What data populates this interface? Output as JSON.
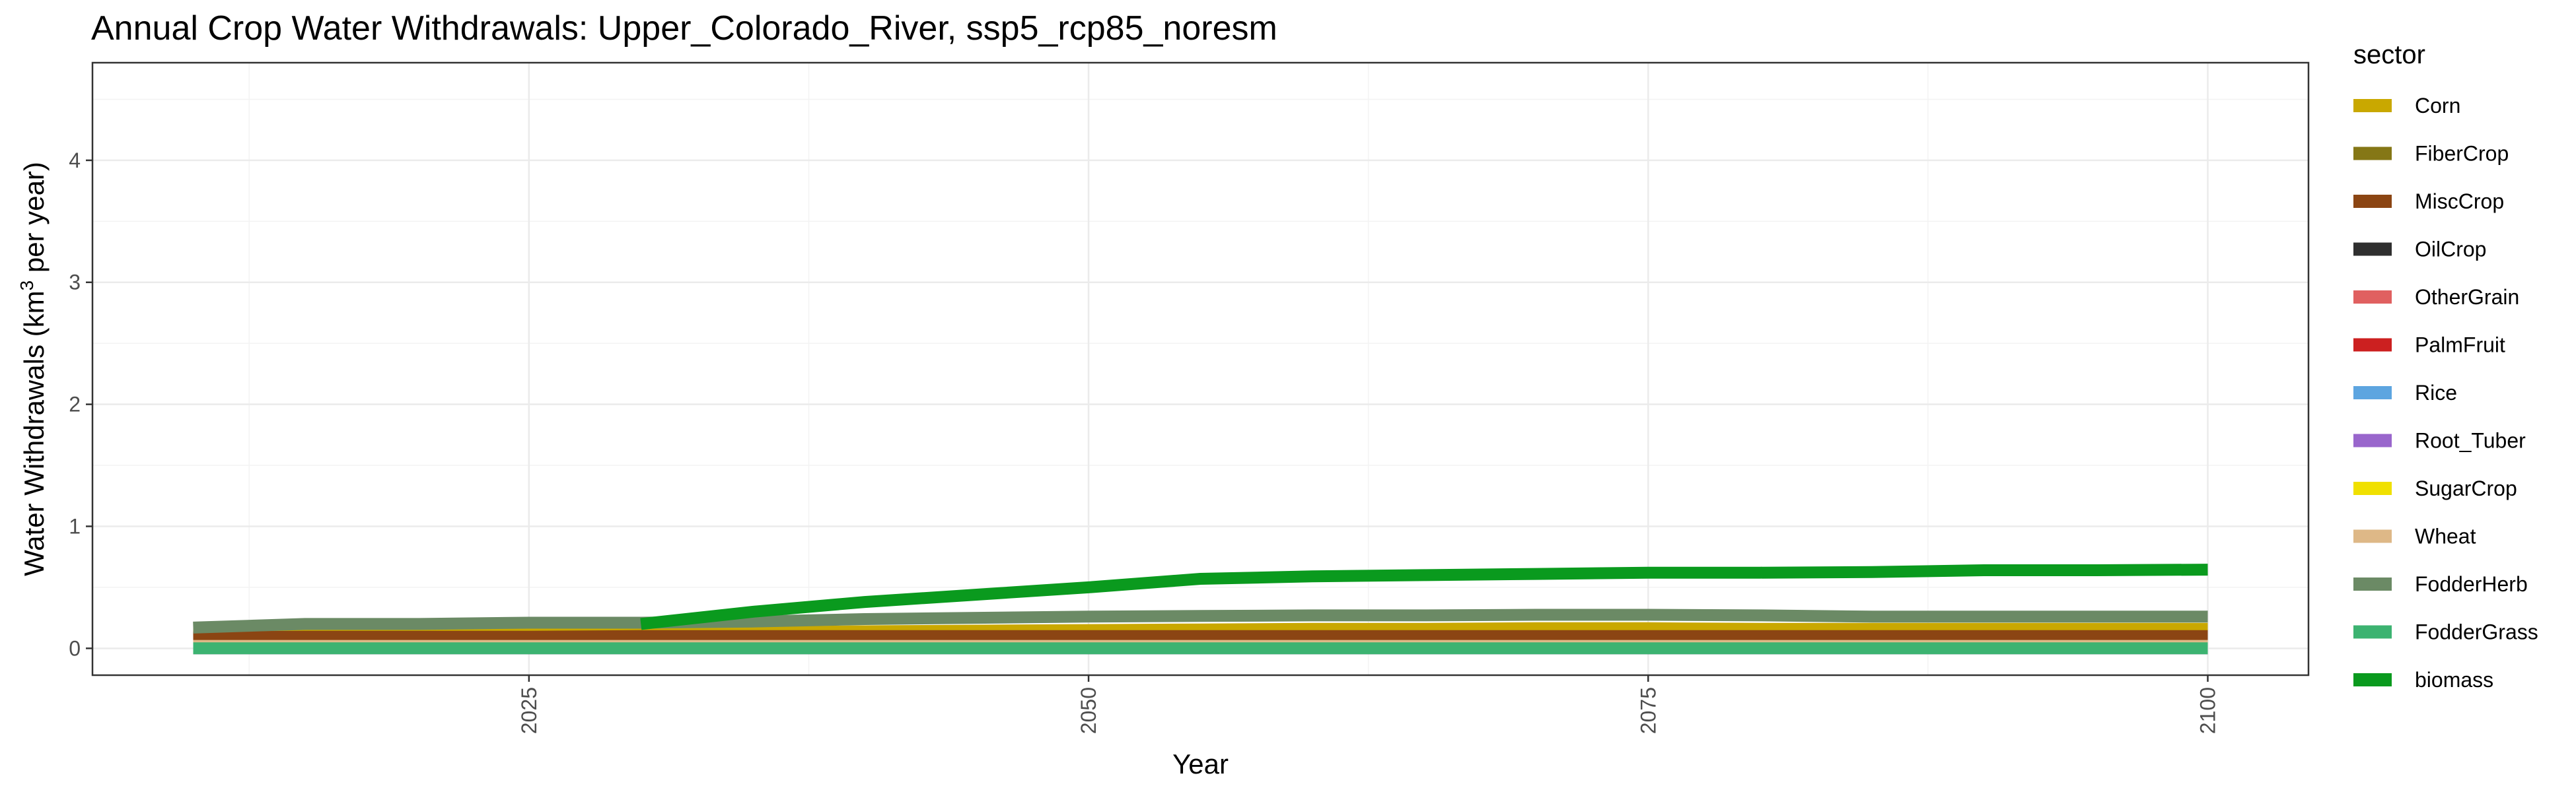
{
  "chart_data": {
    "type": "line",
    "title": "Annual Crop Water Withdrawals: Upper_Colorado_River, ssp5_rcp85_noresm",
    "xlabel": "Year",
    "ylabel_main": "Water Withdrawals (km",
    "ylabel_sup": "3",
    "ylabel_tail": " per year)",
    "xlim": [
      2005.5,
      2104.5
    ],
    "ylim": [
      -0.22,
      4.8
    ],
    "x_ticks": [
      2025,
      2050,
      2075,
      2100
    ],
    "y_ticks": [
      0,
      1,
      2,
      3,
      4
    ],
    "grid": true,
    "legend_title": "sector",
    "legend_position": "right",
    "x": [
      2010,
      2015,
      2020,
      2025,
      2030,
      2035,
      2040,
      2045,
      2050,
      2055,
      2060,
      2065,
      2070,
      2075,
      2080,
      2085,
      2090,
      2095,
      2100
    ],
    "series": [
      {
        "name": "Corn",
        "color": "#C9A800",
        "values": [
          0.12,
          0.12,
          0.12,
          0.12,
          0.12,
          0.13,
          0.14,
          0.145,
          0.15,
          0.155,
          0.16,
          0.16,
          0.165,
          0.165,
          0.16,
          0.16,
          0.16,
          0.16,
          0.16
        ]
      },
      {
        "name": "FiberCrop",
        "color": "#857716",
        "values": [
          0.005,
          0.005,
          0.005,
          0.005,
          0.005,
          0.005,
          0.005,
          0.005,
          0.005,
          0.005,
          0.005,
          0.005,
          0.005,
          0.005,
          0.005,
          0.005,
          0.005,
          0.005,
          0.005
        ]
      },
      {
        "name": "MiscCrop",
        "color": "#8B4513",
        "values": [
          0.09,
          0.095,
          0.095,
          0.095,
          0.1,
          0.1,
          0.1,
          0.1,
          0.1,
          0.1,
          0.1,
          0.1,
          0.1,
          0.1,
          0.1,
          0.1,
          0.1,
          0.1,
          0.1
        ]
      },
      {
        "name": "OilCrop",
        "color": "#2F2F2F",
        "values": [
          0.003,
          0.003,
          0.003,
          0.003,
          0.003,
          0.003,
          0.003,
          0.003,
          0.003,
          0.003,
          0.003,
          0.003,
          0.003,
          0.003,
          0.003,
          0.003,
          0.003,
          0.003,
          0.003
        ]
      },
      {
        "name": "OtherGrain",
        "color": "#E06060",
        "values": [
          0.01,
          0.01,
          0.01,
          0.01,
          0.01,
          0.01,
          0.01,
          0.01,
          0.01,
          0.01,
          0.01,
          0.01,
          0.01,
          0.01,
          0.01,
          0.01,
          0.01,
          0.01,
          0.01
        ]
      },
      {
        "name": "PalmFruit",
        "color": "#CC2020",
        "values": [
          0,
          0,
          0,
          0,
          0,
          0,
          0,
          0,
          0,
          0,
          0,
          0,
          0,
          0,
          0,
          0,
          0,
          0,
          0
        ]
      },
      {
        "name": "Rice",
        "color": "#5DA5E0",
        "values": [
          0,
          0,
          0,
          0,
          0,
          0,
          0,
          0,
          0,
          0,
          0,
          0,
          0,
          0,
          0,
          0,
          0,
          0,
          0
        ]
      },
      {
        "name": "Root_Tuber",
        "color": "#9966CC",
        "values": [
          0.005,
          0.005,
          0.005,
          0.005,
          0.005,
          0.005,
          0.005,
          0.005,
          0.005,
          0.005,
          0.005,
          0.005,
          0.005,
          0.005,
          0.005,
          0.005,
          0.005,
          0.005,
          0.005
        ]
      },
      {
        "name": "SugarCrop",
        "color": "#F0E000",
        "values": [
          0.002,
          0.002,
          0.002,
          0.002,
          0.002,
          0.002,
          0.002,
          0.002,
          0.002,
          0.002,
          0.002,
          0.002,
          0.002,
          0.002,
          0.002,
          0.002,
          0.002,
          0.002,
          0.002
        ]
      },
      {
        "name": "Wheat",
        "color": "#DEB887",
        "values": [
          0.02,
          0.02,
          0.02,
          0.02,
          0.02,
          0.02,
          0.02,
          0.02,
          0.02,
          0.02,
          0.02,
          0.02,
          0.02,
          0.02,
          0.02,
          0.02,
          0.02,
          0.02,
          0.02
        ]
      },
      {
        "name": "FodderHerb",
        "color": "#6B8A65",
        "values": [
          0.17,
          0.2,
          0.2,
          0.21,
          0.21,
          0.22,
          0.24,
          0.25,
          0.26,
          0.265,
          0.27,
          0.27,
          0.275,
          0.275,
          0.27,
          0.26,
          0.26,
          0.26,
          0.26
        ]
      },
      {
        "name": "FodderGrass",
        "color": "#3CB371",
        "values": [
          0,
          0,
          0,
          0,
          0,
          0,
          0,
          0,
          0,
          0,
          0,
          0,
          0,
          0,
          0,
          0,
          0,
          0,
          0
        ]
      },
      {
        "name": "biomass",
        "color": "#0A9A1E",
        "values": [
          null,
          null,
          null,
          null,
          0.2,
          0.3,
          0.38,
          0.44,
          0.5,
          0.57,
          0.59,
          0.6,
          0.61,
          0.62,
          0.62,
          0.625,
          0.64,
          0.64,
          0.645
        ]
      }
    ]
  }
}
